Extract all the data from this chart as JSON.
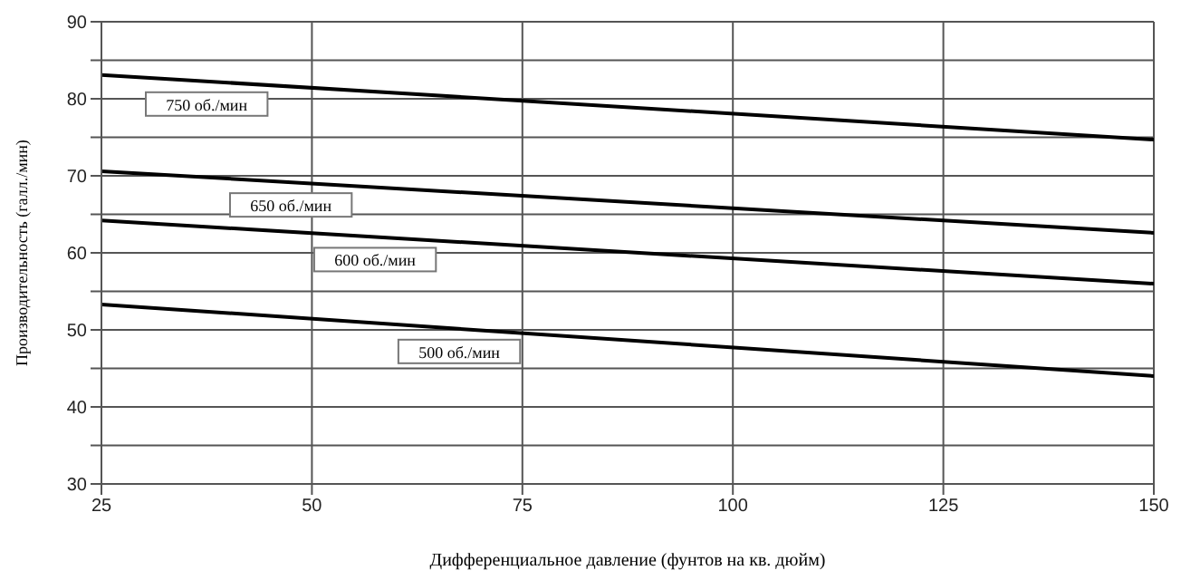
{
  "chart_data": {
    "type": "line",
    "xlabel": "Дифференциальное давление (фунтов на кв. дюйм)",
    "ylabel": "Производительность (галл./мин)",
    "x": [
      25,
      150
    ],
    "xlim": [
      25,
      150
    ],
    "xticks": [
      25,
      50,
      75,
      100,
      125,
      150
    ],
    "ylim": [
      30,
      90
    ],
    "yticks": [
      30,
      {
        "value": 35,
        "label": null
      },
      40,
      {
        "value": 45,
        "label": null
      },
      50,
      {
        "value": 55,
        "label": null
      },
      60,
      {
        "value": 65,
        "label": null
      },
      70,
      {
        "value": 75,
        "label": null
      },
      80,
      {
        "value": 85,
        "label": null
      },
      90
    ],
    "grid": true,
    "legend": false,
    "marker": "none",
    "line_style": "solid",
    "series": [
      {
        "name": "750 об./мин",
        "color": "#000000",
        "values": [
          83.1,
          74.7
        ]
      },
      {
        "name": "650 об./мин",
        "color": "#000000",
        "values": [
          70.6,
          62.6
        ]
      },
      {
        "name": "600 об./мин",
        "color": "#000000",
        "values": [
          64.2,
          56.0
        ]
      },
      {
        "name": "500 об./мин",
        "color": "#000000",
        "values": [
          53.3,
          44.0
        ]
      }
    ]
  }
}
